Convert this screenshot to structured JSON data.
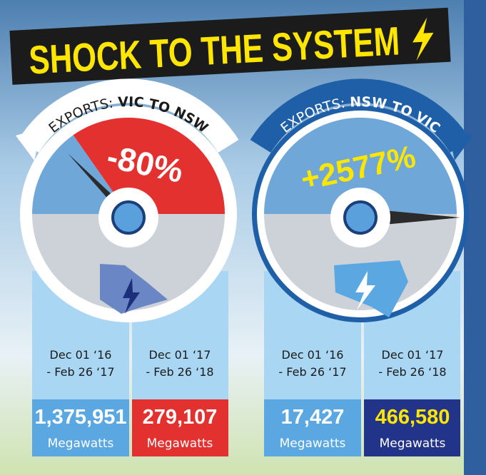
{
  "title": "SHOCK TO THE SYSTEM",
  "gauges": [
    {
      "label_prefix": "EXPORTS:",
      "label_route": "VIC TO NSW",
      "change": "-80%",
      "periods": [
        {
          "lines": [
            "Dec 01 ‘16",
            "- Feb 26 ‘17"
          ],
          "value": "1,375,951",
          "unit": "Megawatts"
        },
        {
          "lines": [
            "Dec 01 ‘17",
            "- Feb 26 ‘18"
          ],
          "value": "279,107",
          "unit": "Megawatts"
        }
      ]
    },
    {
      "label_prefix": "EXPORTS:",
      "label_route": "NSW TO VIC",
      "change": "+2577%",
      "periods": [
        {
          "lines": [
            "Dec 01 ‘16",
            "- Feb 26 ‘17"
          ],
          "value": "17,427",
          "unit": "Megawatts"
        },
        {
          "lines": [
            "Dec 01 ‘17",
            "- Feb 26 ‘18"
          ],
          "value": "466,580",
          "unit": "Megawatts"
        }
      ]
    }
  ]
}
